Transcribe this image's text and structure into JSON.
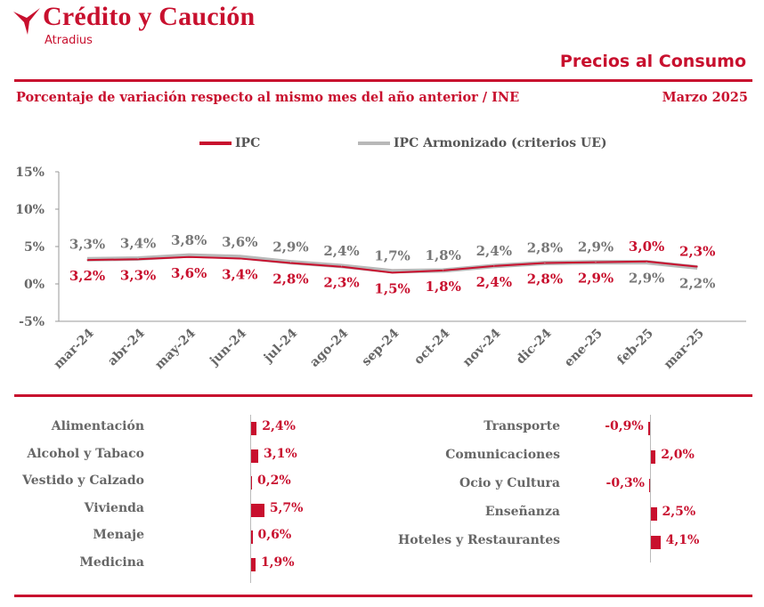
{
  "brand": {
    "name": "Crédito y Caución",
    "sub": "Atradius",
    "logo": "red-bird-mark"
  },
  "report": {
    "title": "Precios al Consumo"
  },
  "subtitle": "Porcentaje de variación respecto al mismo mes del año anterior / INE",
  "period": "Marzo  2025",
  "colors": {
    "accent": "#c8102e",
    "series_gray": "#b8b8b8",
    "text_gray": "#666666"
  },
  "chart_data": [
    {
      "type": "line",
      "categories": [
        "mar-24",
        "abr-24",
        "may-24",
        "jun-24",
        "jul-24",
        "ago-24",
        "sep-24",
        "oct-24",
        "nov-24",
        "dic-24",
        "ene-25",
        "feb-25",
        "mar-25"
      ],
      "series": [
        {
          "name": "IPC",
          "values": [
            3.2,
            3.3,
            3.6,
            3.4,
            2.8,
            2.3,
            1.5,
            1.8,
            2.4,
            2.8,
            2.9,
            3.0,
            2.3
          ],
          "labels": [
            "3,2%",
            "3,3%",
            "3,6%",
            "3,4%",
            "2,8%",
            "2,3%",
            "1,5%",
            "1,8%",
            "2,4%",
            "2,8%",
            "2,9%",
            "3,0%",
            "2,3%"
          ]
        },
        {
          "name": "IPC Armonizado (criterios UE)",
          "values": [
            3.3,
            3.4,
            3.8,
            3.6,
            2.9,
            2.4,
            1.7,
            1.8,
            2.4,
            2.8,
            2.9,
            2.9,
            2.2
          ],
          "labels": [
            "3,3%",
            "3,4%",
            "3,8%",
            "3,6%",
            "2,9%",
            "2,4%",
            "1,7%",
            "1,8%",
            "2,4%",
            "2,8%",
            "2,9%",
            "2,9%",
            "2,2%"
          ]
        }
      ],
      "y_ticks": [
        {
          "value": 15,
          "label": "15%"
        },
        {
          "value": 10,
          "label": "10%"
        },
        {
          "value": 5,
          "label": "5%"
        },
        {
          "value": 0,
          "label": "0%"
        },
        {
          "value": -5,
          "label": "-5%"
        }
      ],
      "ylim": [
        -5,
        15
      ],
      "legend_position": "top",
      "grid": false
    },
    {
      "type": "bar",
      "categories": [
        "Alimentación",
        "Alcohol y Tabaco",
        "Vestido y Calzado",
        "Vivienda",
        "Menaje",
        "Medicina"
      ],
      "values": [
        2.4,
        3.1,
        0.2,
        5.7,
        0.6,
        1.9
      ],
      "labels": [
        "2,4%",
        "3,1%",
        "0,2%",
        "5,7%",
        "0,6%",
        "1,9%"
      ]
    },
    {
      "type": "bar",
      "categories": [
        "Transporte",
        "Comunicaciones",
        "Ocio y Cultura",
        "Enseñanza",
        "Hoteles y Restaurantes"
      ],
      "values": [
        -0.9,
        2.0,
        -0.3,
        2.5,
        4.1
      ],
      "labels": [
        "-0,9%",
        "2,0%",
        "-0,3%",
        "2,5%",
        "4,1%"
      ]
    }
  ]
}
